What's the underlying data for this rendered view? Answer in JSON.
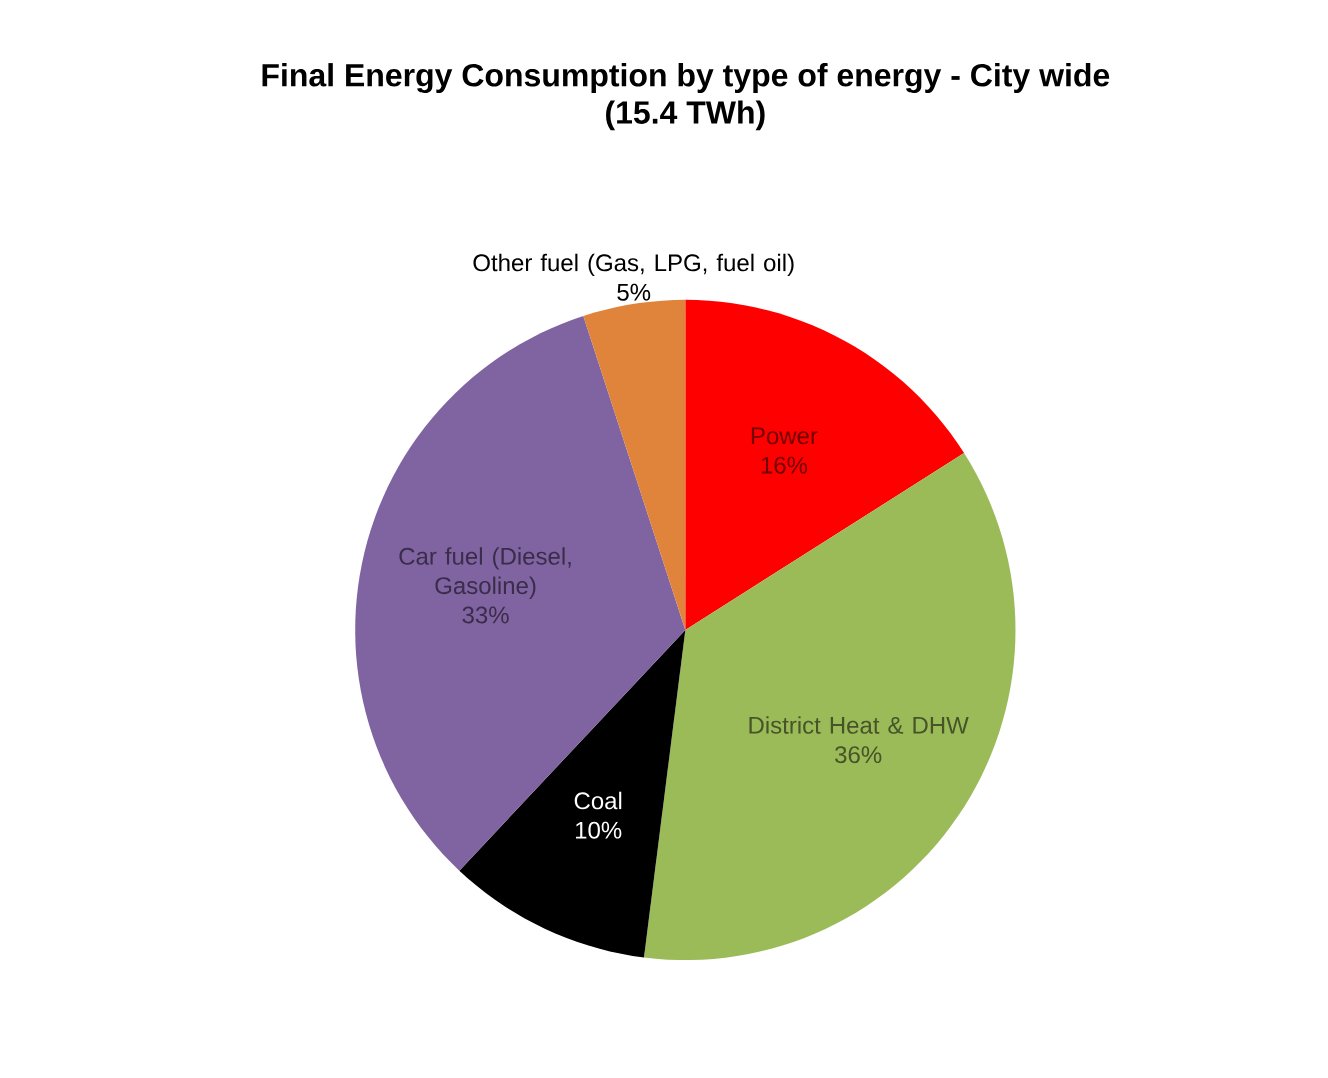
{
  "chart_data": {
    "type": "pie",
    "title": "Final Energy Consumption  by type of energy -  City wide",
    "subtitle": "(15.4 TWh)",
    "categories": [
      "Power",
      "District Heat & DHW",
      "Coal",
      "Car fuel (Diesel, Gasoline)",
      "Other fuel (Gas, LPG, fuel oil)"
    ],
    "values": [
      16,
      36,
      10,
      33,
      5
    ],
    "value_labels": [
      "16%",
      "36%",
      "10%",
      "33%",
      "5%"
    ],
    "colors": [
      "#ff0000",
      "#9bbb59",
      "#000000",
      "#8064a2",
      "#e0843c"
    ]
  }
}
